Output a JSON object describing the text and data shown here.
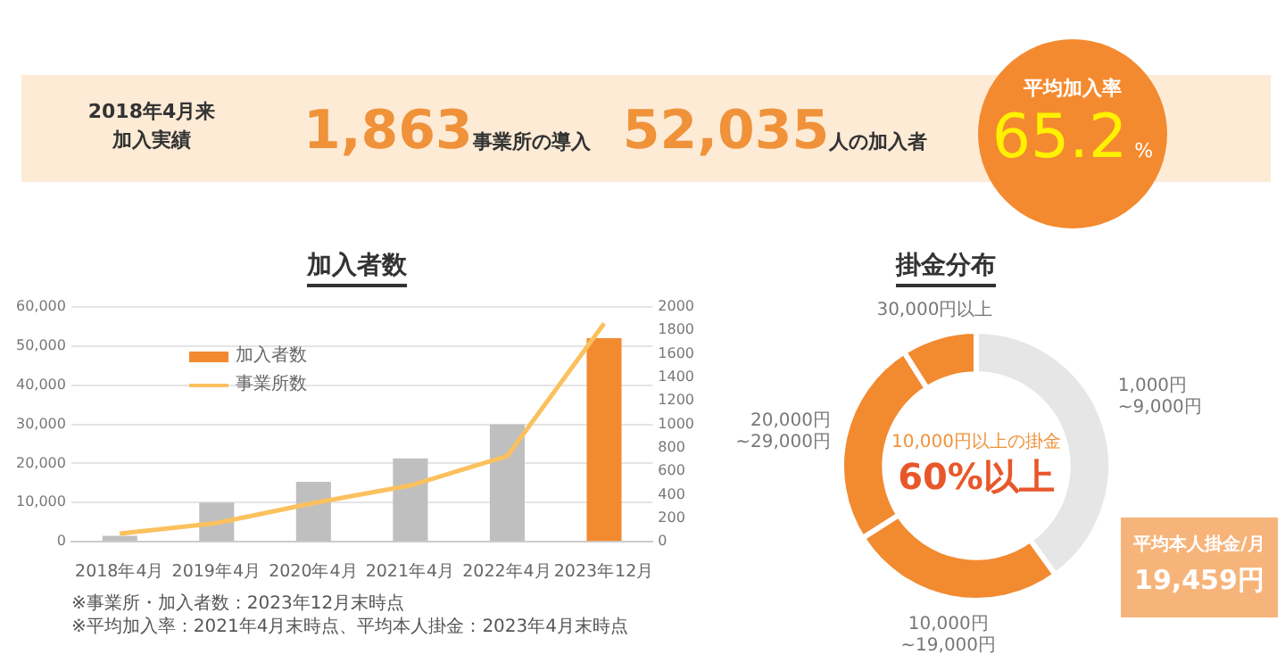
{
  "chart_data": [
    {
      "type": "other",
      "annotations": [
        "2018年4月来",
        "加入実績",
        "1,863",
        "事業所の導入",
        "52,035",
        "人の加入者",
        "平均加入率",
        "65.2",
        "%"
      ]
    },
    {
      "type": "bar",
      "title": "加入者数",
      "categories": [
        "2018年4月",
        "2019年4月",
        "2020年4月",
        "2021年4月",
        "2022年4月",
        "2023年12月"
      ],
      "series": [
        {
          "name": "加入者数",
          "type": "bar",
          "color": "#f28a30",
          "colors": [
            "#bfbfbf",
            "#bfbfbf",
            "#bfbfbf",
            "#bfbfbf",
            "#bfbfbf",
            "#f28a30"
          ],
          "values": [
            1500,
            10000,
            15300,
            21300,
            30000,
            52000
          ]
        },
        {
          "name": "事業所数",
          "type": "line",
          "axis": "y2",
          "color": "#fbc15e",
          "values": [
            70,
            160,
            330,
            480,
            730,
            1860
          ]
        }
      ],
      "ylim": [
        0,
        60000
      ],
      "yticks": [
        0,
        {
          "value": 10000,
          "label": "10,000"
        },
        {
          "value": 20000,
          "label": "20,000"
        },
        {
          "value": 30000,
          "label": "30,000"
        },
        {
          "value": 40000,
          "label": "40,000"
        },
        {
          "value": 50000,
          "label": "50,000"
        },
        {
          "value": 60000,
          "label": "60,000"
        }
      ],
      "y2lim": [
        0,
        2000
      ],
      "y2ticks": [
        0,
        200,
        400,
        600,
        800,
        1000,
        1200,
        1400,
        1600,
        1800,
        2000
      ],
      "grid": "y",
      "legend": "top left",
      "marker": "none",
      "annotations": [
        "※事業所・加入者数：2023年12月末時点",
        "※平均加入率：2021年4月末時点、平均本人掛金：2023年4月末時点"
      ]
    },
    {
      "type": "donut",
      "title": "掛金分布",
      "categories": [
        "1,000円~9,000円",
        "10,000円~19,000円",
        "20,000円~29,000円",
        "30,000円以上"
      ],
      "values": [
        40,
        26,
        25,
        9
      ],
      "colors": [
        "#e6e6e6",
        "#f28a30",
        "#f28a30",
        "#f28a30"
      ],
      "annotations": [
        "10,000円以上の掛金",
        "60%以上",
        "平均本人掛金/月",
        "19,459円"
      ]
    }
  ]
}
